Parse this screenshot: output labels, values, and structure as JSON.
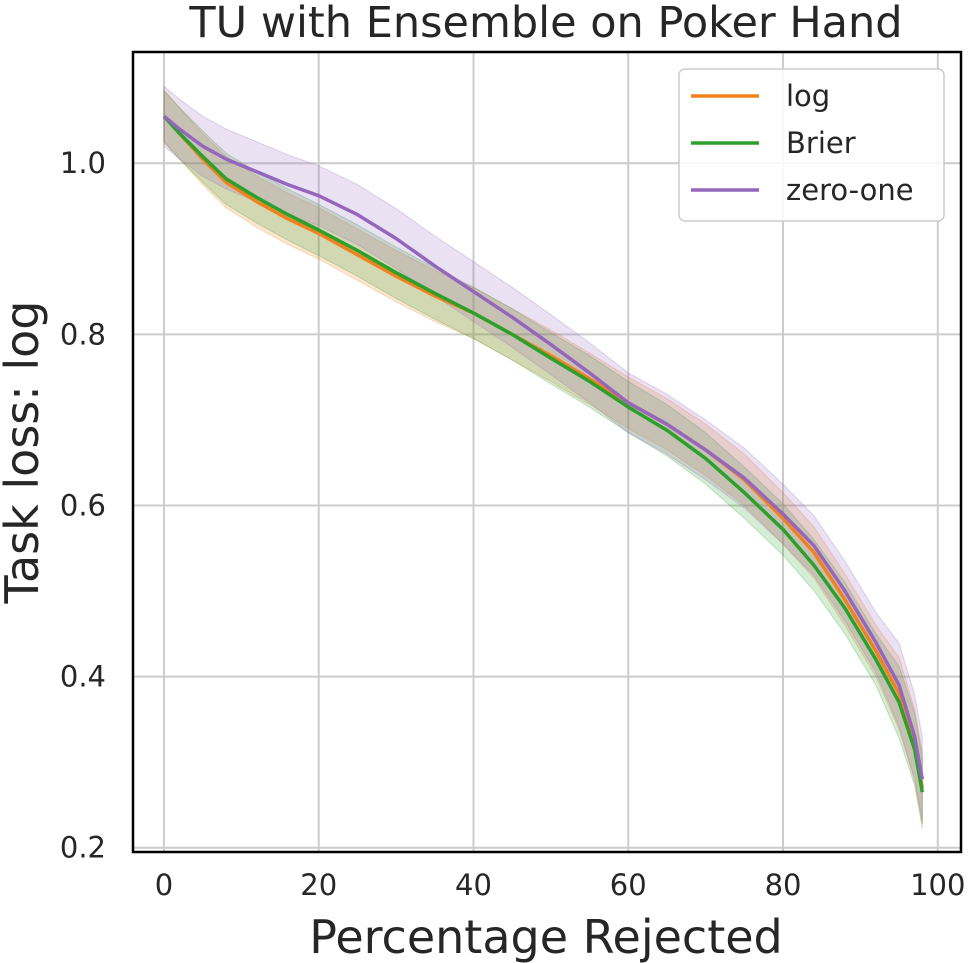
{
  "chart_data": {
    "type": "line",
    "title": "TU with Ensemble on Poker Hand",
    "xlabel": "Percentage Rejected",
    "ylabel": "Task loss: log",
    "xlim": [
      -4,
      103
    ],
    "ylim": [
      0.195,
      1.13
    ],
    "xticks": [
      0,
      20,
      40,
      60,
      80,
      100
    ],
    "yticks": [
      0.2,
      0.4,
      0.6,
      0.8,
      1.0
    ],
    "xtick_labels": [
      "0",
      "20",
      "40",
      "60",
      "80",
      "100"
    ],
    "ytick_labels": [
      "0.2",
      "0.4",
      "0.6",
      "0.8",
      "1.0"
    ],
    "grid": true,
    "legend_position": "top-right",
    "x": [
      0,
      2,
      5,
      8,
      12,
      16,
      20,
      25,
      30,
      35,
      40,
      45,
      50,
      55,
      60,
      65,
      70,
      75,
      80,
      84,
      88,
      92,
      95,
      97,
      98
    ],
    "series": [
      {
        "name": "log",
        "color": "#f0821e",
        "values": [
          1.055,
          1.035,
          1.005,
          0.978,
          0.955,
          0.935,
          0.918,
          0.893,
          0.868,
          0.845,
          0.825,
          0.8,
          0.775,
          0.748,
          0.72,
          0.695,
          0.665,
          0.63,
          0.585,
          0.545,
          0.49,
          0.43,
          0.38,
          0.32,
          0.27
        ],
        "band": 0.03
      },
      {
        "name": "Brier",
        "color": "#2ca02c",
        "values": [
          1.055,
          1.035,
          1.008,
          0.982,
          0.96,
          0.94,
          0.922,
          0.898,
          0.872,
          0.848,
          0.825,
          0.8,
          0.772,
          0.745,
          0.715,
          0.688,
          0.655,
          0.615,
          0.572,
          0.53,
          0.48,
          0.42,
          0.37,
          0.315,
          0.265
        ],
        "band": 0.03
      },
      {
        "name": "zero-one",
        "color": "#9467bd",
        "values": [
          1.055,
          1.04,
          1.02,
          1.005,
          0.99,
          0.975,
          0.962,
          0.94,
          0.912,
          0.88,
          0.85,
          0.82,
          0.788,
          0.755,
          0.72,
          0.695,
          0.665,
          0.632,
          0.59,
          0.553,
          0.5,
          0.44,
          0.39,
          0.33,
          0.28
        ],
        "band": 0.035
      }
    ]
  }
}
